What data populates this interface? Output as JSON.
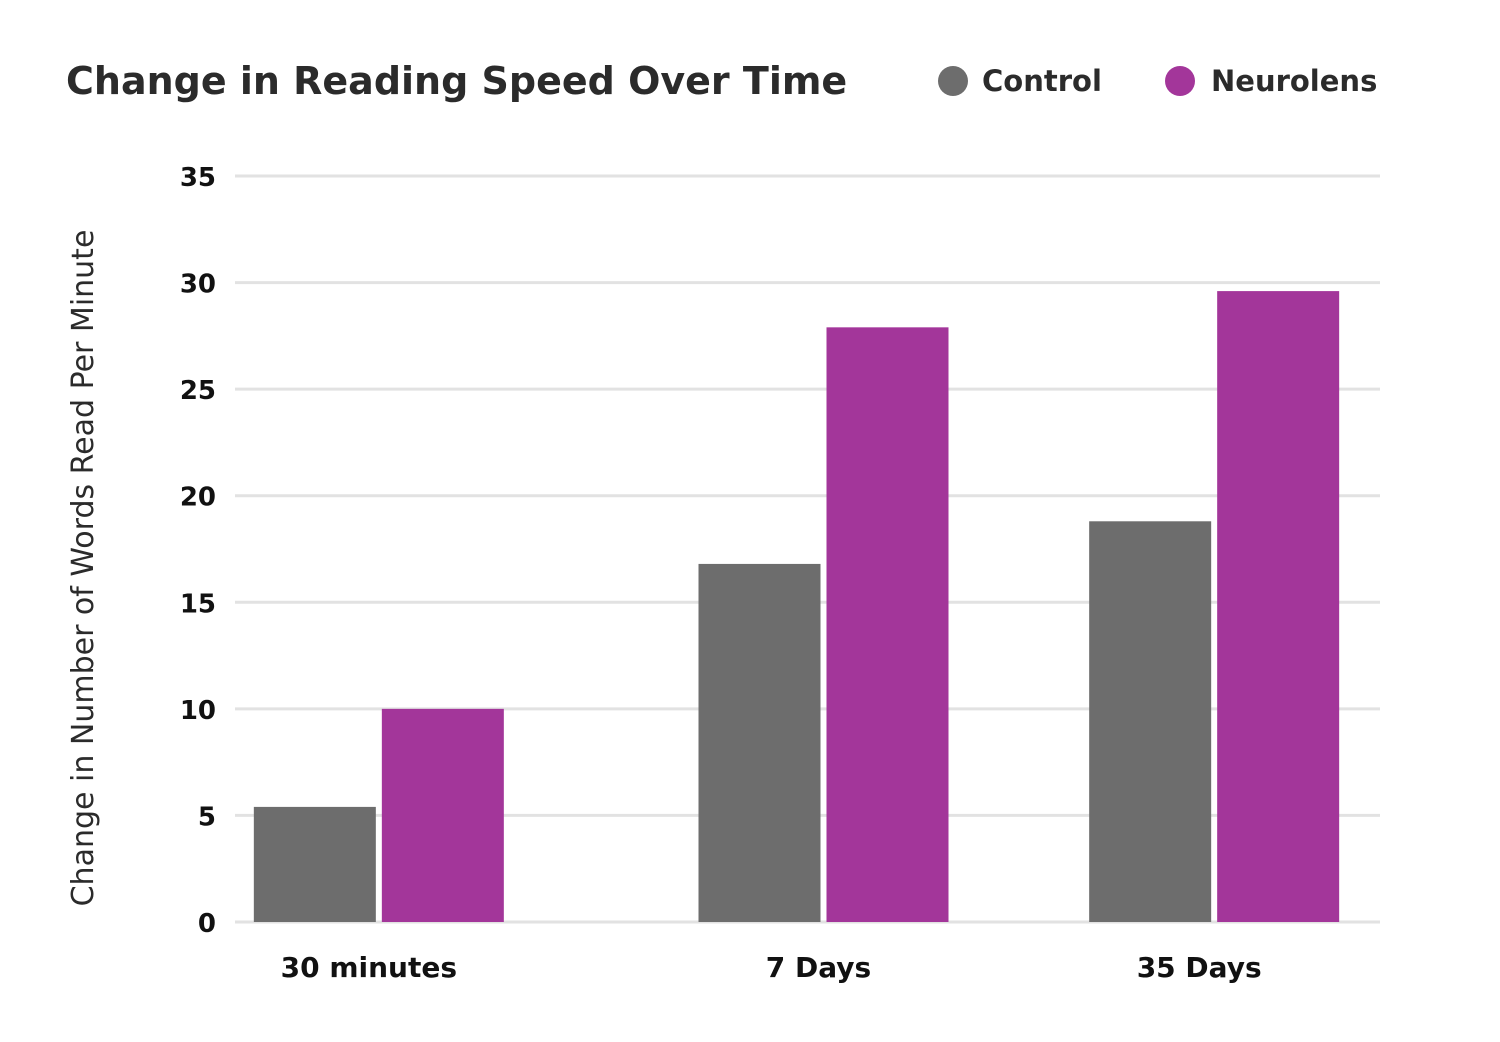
{
  "chart_data": {
    "type": "bar",
    "title": "Change in Reading Speed Over Time",
    "xlabel": "",
    "ylabel": "Change in Number of Words Read Per Minute",
    "categories": [
      "30 minutes",
      "7 Days",
      "35 Days"
    ],
    "series": [
      {
        "name": "Control",
        "color": "#6d6d6d",
        "values": [
          5.4,
          16.8,
          18.8
        ]
      },
      {
        "name": "Neurolens",
        "color": "#a3369a",
        "values": [
          10.0,
          27.9,
          29.6
        ]
      }
    ],
    "ylim": [
      0,
      35
    ],
    "yticks": [
      "0",
      "5",
      "10",
      "15",
      "20",
      "25",
      "30",
      "35"
    ],
    "grid": true,
    "legend_position": "top-right"
  }
}
